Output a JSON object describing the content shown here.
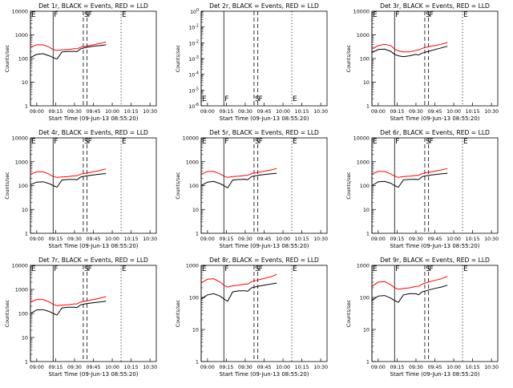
{
  "figure": {
    "x_tick_labels": [
      "09:00",
      "09:15",
      "09:30",
      "09:45",
      "10:00",
      "10:15",
      "10:30"
    ],
    "y_tick_labels_main": [
      "1",
      "10",
      "100",
      "1000",
      "10000"
    ],
    "y_tick_labels_det2": [
      "10^-6",
      "10^-5",
      "10^-4",
      "10^-3",
      "10^-2",
      "10^-1",
      "10^0"
    ]
  },
  "chart_data": [
    {
      "type": "line",
      "title": "Det 1r, BLACK = Events, RED = LLD",
      "xlabel": "Start Time (09-Jun-13 08:55:20)",
      "ylabel": "Counts/sec",
      "ylim": [
        1,
        10000
      ],
      "yscale": "log",
      "xlim": [
        "08:55",
        "10:35"
      ],
      "x": [
        "08:55",
        "09:00",
        "09:05",
        "09:10",
        "09:13",
        "09:16",
        "09:20",
        "09:25",
        "09:30",
        "09:32",
        "09:35",
        "09:40",
        "09:45",
        "09:50",
        "09:55"
      ],
      "series": [
        {
          "name": "Events",
          "color": "#000000",
          "values": [
            110,
            150,
            160,
            130,
            110,
            95,
            190,
            200,
            200,
            195,
            260,
            300,
            330,
            350,
            380
          ]
        },
        {
          "name": "LLD",
          "color": "#ff0000",
          "values": [
            300,
            380,
            380,
            300,
            240,
            220,
            230,
            240,
            260,
            260,
            300,
            340,
            380,
            430,
            500
          ]
        }
      ],
      "markers": [
        {
          "label": "E",
          "time": "08:55",
          "style": "solid"
        },
        {
          "label": "F",
          "time": "09:13",
          "style": "solid"
        },
        {
          "label": "S",
          "time": "09:37",
          "style": "dashed"
        },
        {
          "label": "F",
          "time": "09:40",
          "style": "dashed"
        },
        {
          "label": "E",
          "time": "10:07",
          "style": "dotted"
        }
      ]
    },
    {
      "type": "line",
      "title": "Det 2r, BLACK = Events, RED = LLD",
      "xlabel": "Start Time (09-Jun-13 08:55:20)",
      "ylabel": "Counts/sec",
      "ylim": [
        1e-06,
        1
      ],
      "yscale": "log",
      "xlim": [
        "08:55",
        "10:35"
      ],
      "x": [],
      "series": [],
      "markers": [
        {
          "label": "E",
          "time": "08:55",
          "style": "solid"
        },
        {
          "label": "F",
          "time": "09:13",
          "style": "solid"
        },
        {
          "label": "S",
          "time": "09:37",
          "style": "dashed"
        },
        {
          "label": "F",
          "time": "09:40",
          "style": "dashed"
        },
        {
          "label": "E",
          "time": "10:07",
          "style": "dotted"
        }
      ]
    },
    {
      "type": "line",
      "title": "Det 3r, BLACK = Events, RED = LLD",
      "xlabel": "Start Time (09-Jun-13 08:55:20)",
      "ylabel": "Counts/sec",
      "ylim": [
        1,
        10000
      ],
      "yscale": "log",
      "xlim": [
        "08:55",
        "10:35"
      ],
      "x": [
        "08:55",
        "09:00",
        "09:05",
        "09:10",
        "09:13",
        "09:16",
        "09:20",
        "09:25",
        "09:30",
        "09:32",
        "09:35",
        "09:40",
        "09:45",
        "09:50",
        "09:55"
      ],
      "series": [
        {
          "name": "Events",
          "color": "#000000",
          "values": [
            180,
            240,
            250,
            200,
            150,
            130,
            120,
            130,
            150,
            140,
            170,
            200,
            240,
            280,
            330
          ]
        },
        {
          "name": "LLD",
          "color": "#ff0000",
          "values": [
            250,
            350,
            400,
            350,
            250,
            210,
            190,
            190,
            220,
            230,
            270,
            320,
            350,
            400,
            480
          ]
        }
      ],
      "markers": [
        {
          "label": "E",
          "time": "08:55",
          "style": "solid"
        },
        {
          "label": "F",
          "time": "09:13",
          "style": "solid"
        },
        {
          "label": "S",
          "time": "09:37",
          "style": "dashed"
        },
        {
          "label": "F",
          "time": "09:40",
          "style": "dashed"
        },
        {
          "label": "E",
          "time": "10:07",
          "style": "dotted"
        }
      ]
    },
    {
      "type": "line",
      "title": "Det 4r, BLACK = Events, RED = LLD",
      "xlabel": "Start Time (09-Jun-13 08:55:20)",
      "ylabel": "Counts/sec",
      "ylim": [
        1,
        10000
      ],
      "yscale": "log",
      "xlim": [
        "08:55",
        "10:35"
      ],
      "x": [
        "08:55",
        "09:00",
        "09:05",
        "09:10",
        "09:13",
        "09:16",
        "09:20",
        "09:25",
        "09:30",
        "09:32",
        "09:35",
        "09:40",
        "09:45",
        "09:50",
        "09:55"
      ],
      "series": [
        {
          "name": "Events",
          "color": "#000000",
          "values": [
            110,
            140,
            145,
            120,
            100,
            85,
            170,
            180,
            180,
            175,
            230,
            260,
            280,
            300,
            320
          ]
        },
        {
          "name": "LLD",
          "color": "#ff0000",
          "values": [
            300,
            380,
            380,
            300,
            240,
            220,
            230,
            240,
            260,
            260,
            300,
            340,
            380,
            430,
            500
          ]
        }
      ],
      "markers": [
        {
          "label": "E",
          "time": "08:55",
          "style": "solid"
        },
        {
          "label": "F",
          "time": "09:13",
          "style": "solid"
        },
        {
          "label": "S",
          "time": "09:37",
          "style": "dashed"
        },
        {
          "label": "F",
          "time": "09:40",
          "style": "dashed"
        },
        {
          "label": "E",
          "time": "10:07",
          "style": "dotted"
        }
      ]
    },
    {
      "type": "line",
      "title": "Det 5r, BLACK = Events, RED = LLD",
      "xlabel": "Start Time (09-Jun-13 08:55:20)",
      "ylabel": "Counts/sec",
      "ylim": [
        1,
        10000
      ],
      "yscale": "log",
      "xlim": [
        "08:55",
        "10:35"
      ],
      "x": [
        "08:55",
        "09:00",
        "09:05",
        "09:10",
        "09:13",
        "09:16",
        "09:20",
        "09:25",
        "09:30",
        "09:32",
        "09:35",
        "09:40",
        "09:45",
        "09:50",
        "09:55"
      ],
      "series": [
        {
          "name": "Events",
          "color": "#000000",
          "values": [
            100,
            140,
            150,
            120,
            100,
            80,
            170,
            180,
            185,
            175,
            240,
            270,
            290,
            310,
            330
          ]
        },
        {
          "name": "LLD",
          "color": "#ff0000",
          "values": [
            300,
            390,
            390,
            310,
            250,
            220,
            240,
            250,
            270,
            270,
            320,
            360,
            400,
            450,
            520
          ]
        }
      ],
      "markers": [
        {
          "label": "E",
          "time": "08:55",
          "style": "solid"
        },
        {
          "label": "F",
          "time": "09:13",
          "style": "solid"
        },
        {
          "label": "S",
          "time": "09:37",
          "style": "dashed"
        },
        {
          "label": "F",
          "time": "09:40",
          "style": "dashed"
        },
        {
          "label": "E",
          "time": "10:07",
          "style": "dotted"
        }
      ]
    },
    {
      "type": "line",
      "title": "Det 6r, BLACK = Events, RED = LLD",
      "xlabel": "Start Time (09-Jun-13 08:55:20)",
      "ylabel": "Counts/sec",
      "ylim": [
        1,
        10000
      ],
      "yscale": "log",
      "xlim": [
        "08:55",
        "10:35"
      ],
      "x": [
        "08:55",
        "09:00",
        "09:05",
        "09:10",
        "09:13",
        "09:16",
        "09:20",
        "09:25",
        "09:30",
        "09:32",
        "09:35",
        "09:40",
        "09:45",
        "09:50",
        "09:55"
      ],
      "series": [
        {
          "name": "Events",
          "color": "#000000",
          "values": [
            100,
            145,
            150,
            125,
            100,
            85,
            175,
            180,
            185,
            175,
            240,
            270,
            290,
            310,
            330
          ]
        },
        {
          "name": "LLD",
          "color": "#ff0000",
          "values": [
            310,
            390,
            390,
            310,
            250,
            220,
            240,
            250,
            270,
            270,
            320,
            360,
            400,
            450,
            520
          ]
        }
      ],
      "markers": [
        {
          "label": "E",
          "time": "08:55",
          "style": "solid"
        },
        {
          "label": "F",
          "time": "09:13",
          "style": "solid"
        },
        {
          "label": "S",
          "time": "09:37",
          "style": "dashed"
        },
        {
          "label": "F",
          "time": "09:40",
          "style": "dashed"
        },
        {
          "label": "E",
          "time": "10:07",
          "style": "dotted"
        }
      ]
    },
    {
      "type": "line",
      "title": "Det 7r, BLACK = Events, RED = LLD",
      "xlabel": "Start Time (09-Jun-13 08:55:20)",
      "ylabel": "Counts/sec",
      "ylim": [
        1,
        10000
      ],
      "yscale": "log",
      "xlim": [
        "08:55",
        "10:35"
      ],
      "x": [
        "08:55",
        "09:00",
        "09:05",
        "09:10",
        "09:13",
        "09:16",
        "09:20",
        "09:25",
        "09:30",
        "09:32",
        "09:35",
        "09:40",
        "09:45",
        "09:50",
        "09:55"
      ],
      "series": [
        {
          "name": "Events",
          "color": "#000000",
          "values": [
            100,
            140,
            145,
            120,
            100,
            85,
            170,
            180,
            180,
            175,
            230,
            260,
            280,
            300,
            320
          ]
        },
        {
          "name": "LLD",
          "color": "#ff0000",
          "values": [
            300,
            380,
            380,
            300,
            240,
            210,
            220,
            230,
            250,
            250,
            300,
            340,
            380,
            430,
            500
          ]
        }
      ],
      "markers": [
        {
          "label": "E",
          "time": "08:55",
          "style": "solid"
        },
        {
          "label": "F",
          "time": "09:13",
          "style": "solid"
        },
        {
          "label": "S",
          "time": "09:37",
          "style": "dashed"
        },
        {
          "label": "F",
          "time": "09:40",
          "style": "dashed"
        },
        {
          "label": "E",
          "time": "10:07",
          "style": "dotted"
        }
      ]
    },
    {
      "type": "line",
      "title": "Det 8r, BLACK = Events, RED = LLD",
      "xlabel": "Start Time (09-Jun-13 08:55:20)",
      "ylabel": "Counts/sec",
      "ylim": [
        1,
        1000
      ],
      "yscale": "log",
      "xlim": [
        "08:55",
        "10:35"
      ],
      "x": [
        "08:55",
        "09:00",
        "09:05",
        "09:10",
        "09:13",
        "09:16",
        "09:20",
        "09:25",
        "09:30",
        "09:32",
        "09:35",
        "09:40",
        "09:45",
        "09:50",
        "09:55"
      ],
      "series": [
        {
          "name": "Events",
          "color": "#000000",
          "values": [
            90,
            120,
            130,
            110,
            90,
            75,
            150,
            160,
            160,
            155,
            200,
            220,
            240,
            260,
            280
          ]
        },
        {
          "name": "LLD",
          "color": "#ff0000",
          "values": [
            280,
            370,
            380,
            300,
            240,
            210,
            230,
            240,
            260,
            260,
            310,
            350,
            390,
            440,
            520
          ]
        }
      ],
      "markers": [
        {
          "label": "E",
          "time": "08:55",
          "style": "solid"
        },
        {
          "label": "F",
          "time": "09:13",
          "style": "solid"
        },
        {
          "label": "S",
          "time": "09:37",
          "style": "dashed"
        },
        {
          "label": "F",
          "time": "09:40",
          "style": "dashed"
        },
        {
          "label": "E",
          "time": "10:07",
          "style": "dotted"
        }
      ]
    },
    {
      "type": "line",
      "title": "Det 9r, BLACK = Events, RED = LLD",
      "xlabel": "Start Time (09-Jun-13 08:55:20)",
      "ylabel": "Counts/sec",
      "ylim": [
        1,
        1000
      ],
      "yscale": "log",
      "xlim": [
        "08:55",
        "10:35"
      ],
      "x": [
        "08:55",
        "09:00",
        "09:05",
        "09:10",
        "09:13",
        "09:16",
        "09:20",
        "09:25",
        "09:30",
        "09:32",
        "09:35",
        "09:40",
        "09:45",
        "09:50",
        "09:55"
      ],
      "series": [
        {
          "name": "Events",
          "color": "#000000",
          "values": [
            80,
            110,
            115,
            95,
            80,
            70,
            120,
            130,
            130,
            120,
            150,
            170,
            190,
            210,
            240
          ]
        },
        {
          "name": "LLD",
          "color": "#ff0000",
          "values": [
            220,
            300,
            310,
            250,
            200,
            180,
            190,
            200,
            220,
            220,
            260,
            300,
            340,
            380,
            450
          ]
        }
      ],
      "markers": [
        {
          "label": "E",
          "time": "08:55",
          "style": "solid"
        },
        {
          "label": "F",
          "time": "09:13",
          "style": "solid"
        },
        {
          "label": "S",
          "time": "09:37",
          "style": "dashed"
        },
        {
          "label": "F",
          "time": "09:40",
          "style": "dashed"
        },
        {
          "label": "E",
          "time": "10:07",
          "style": "dotted"
        }
      ]
    }
  ]
}
